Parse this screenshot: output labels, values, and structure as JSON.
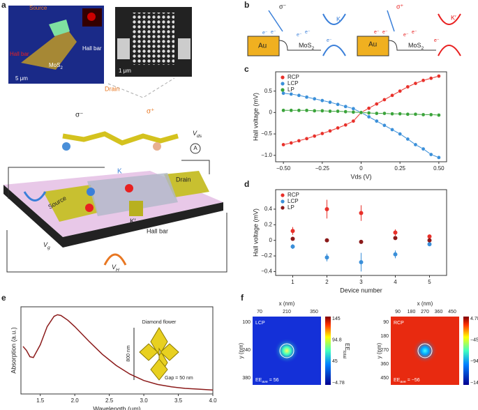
{
  "panel_labels": [
    "a",
    "b",
    "c",
    "d",
    "e",
    "f"
  ],
  "panel_a": {
    "source": "Source",
    "hall_bar_left": "Hall bar",
    "hall_bar_right": "Hall bar",
    "mos2": {
      "main": "MoS",
      "sub": "2"
    },
    "scale_a": "5 μm",
    "scale_b": "1 μm",
    "drain": "Drain",
    "sigma_minus": "σ⁻",
    "sigma_plus": "σ⁺",
    "vds": {
      "main": "V",
      "sub": "ds"
    },
    "ammeter": "A",
    "k": "K",
    "k_prime": "K′",
    "drain_pad": "Drain",
    "source_pad": "Source",
    "hall_bar_pad": "Hall bar",
    "vg": {
      "main": "V",
      "sub": "g"
    },
    "vh": {
      "main": "V",
      "sub": "H"
    }
  },
  "panel_b": {
    "sigma_left": "σ⁻",
    "k": "K",
    "au_left": "Au",
    "mos2_left": {
      "main": "MoS",
      "sub": "2"
    },
    "electrons_left": [
      "e⁻",
      "e⁻",
      "e⁻",
      "e⁻",
      "e⁻"
    ],
    "sigma_right": "σ⁺",
    "k_prime": "K′",
    "au_right": "Au",
    "mos2_right": {
      "main": "MoS",
      "sub": "2"
    },
    "electrons_right": [
      "e⁻",
      "e⁻",
      "e⁻",
      "e⁻",
      "e⁻"
    ]
  },
  "panel_e_inset": {
    "title": "Diamond flower",
    "size": "800 nm",
    "gap": "Gap = 50 nm"
  },
  "panel_f": {
    "left": {
      "x_title": "x (nm)",
      "y_title": "y (nm)",
      "xticks": [
        "70",
        "210",
        "350"
      ],
      "yticks": [
        "100",
        "240",
        "380"
      ],
      "mode": "LCP",
      "ee_ave": {
        "main": "EE",
        "sub": "ave",
        "rest": " = 56"
      },
      "colorbar_ticks": [
        "145",
        "94.8",
        "45",
        "−4.78"
      ],
      "colorbar_label": {
        "main": "EE",
        "sub": "total"
      }
    },
    "right": {
      "x_title": "x (nm)",
      "y_title": "y (nm)",
      "xticks": [
        "90",
        "180",
        "270",
        "360",
        "450"
      ],
      "yticks": [
        "90",
        "180",
        "270",
        "360",
        "450"
      ],
      "mode": "RCP",
      "ee_ave": {
        "main": "EE",
        "sub": "ave",
        "rest": " = −56"
      },
      "colorbar_ticks": [
        "4.78",
        "−45",
        "−94.8",
        "−145"
      ],
      "colorbar_label": {
        "main": "EE",
        "sub": "total"
      }
    }
  },
  "chart_data": [
    {
      "type": "line",
      "marker": true,
      "xlabel": "Vds (V)",
      "ylabel": "Hall voltage (mV)",
      "legend": "upper left",
      "x": [
        -0.5,
        -0.45,
        -0.4,
        -0.35,
        -0.3,
        -0.25,
        -0.2,
        -0.15,
        -0.1,
        -0.05,
        0,
        0.05,
        0.1,
        0.15,
        0.2,
        0.25,
        0.3,
        0.35,
        0.4,
        0.45,
        0.5
      ],
      "series": [
        {
          "name": "RCP",
          "color": "#e8302a",
          "values": [
            -0.75,
            -0.71,
            -0.66,
            -0.61,
            -0.55,
            -0.49,
            -0.43,
            -0.36,
            -0.29,
            -0.2,
            0,
            0.1,
            0.2,
            0.3,
            0.4,
            0.5,
            0.6,
            0.68,
            0.75,
            0.8,
            0.85
          ]
        },
        {
          "name": "LCP",
          "color": "#3a8fd9",
          "values": [
            0.45,
            0.43,
            0.4,
            0.36,
            0.32,
            0.28,
            0.24,
            0.19,
            0.14,
            0.09,
            0,
            -0.1,
            -0.2,
            -0.3,
            -0.4,
            -0.5,
            -0.62,
            -0.75,
            -0.85,
            -0.98,
            -1.05
          ]
        },
        {
          "name": "LP",
          "color": "#3aa33a",
          "values": [
            0.05,
            0.05,
            0.05,
            0.05,
            0.04,
            0.04,
            0.03,
            0.03,
            0.02,
            0.01,
            0,
            -0.01,
            -0.02,
            -0.02,
            -0.03,
            -0.03,
            -0.04,
            -0.04,
            -0.05,
            -0.05,
            -0.06
          ]
        }
      ],
      "xlim": [
        -0.55,
        0.55
      ],
      "ylim": [
        -1.15,
        0.95
      ],
      "xticks": [
        {
          "value": -0.5,
          "label": "−0.50"
        },
        {
          "value": -0.25,
          "label": "−0.25"
        },
        0,
        {
          "value": 0.25,
          "label": "0.25"
        },
        {
          "value": 0.5,
          "label": "0.50"
        }
      ],
      "yticks": [
        {
          "value": -1,
          "label": "−1.0"
        },
        {
          "value": -0.5,
          "label": "−0.5"
        },
        0,
        0.5
      ]
    },
    {
      "type": "scatter",
      "xlabel": "Device number",
      "ylabel": "Hall voltage (mV)",
      "legend": "upper left",
      "x": [
        1,
        2,
        3,
        4,
        5
      ],
      "series": [
        {
          "name": "RCP",
          "color": "#e8302a",
          "values": [
            0.12,
            0.4,
            0.35,
            0.1,
            0.05
          ],
          "errors": [
            0.05,
            0.12,
            0.1,
            0.04,
            0.02
          ]
        },
        {
          "name": "LCP",
          "color": "#3a8fd9",
          "values": [
            -0.08,
            -0.22,
            -0.28,
            -0.18,
            -0.05
          ],
          "errors": [
            0.03,
            0.05,
            0.12,
            0.05,
            0.01
          ]
        },
        {
          "name": "LP",
          "color": "#8b1a1a",
          "values": [
            0.02,
            0,
            -0.02,
            0.03,
            0
          ],
          "errors": [
            0.01,
            0.01,
            0.01,
            0.01,
            0.01
          ]
        }
      ],
      "xlim": [
        0.5,
        5.5
      ],
      "ylim": [
        -0.45,
        0.65
      ],
      "xticks": [
        1,
        2,
        3,
        4,
        5
      ],
      "yticks": [
        {
          "value": -0.4,
          "label": "−0.4"
        },
        {
          "value": -0.2,
          "label": "−0.2"
        },
        0,
        0.2,
        0.4
      ]
    },
    {
      "type": "line",
      "marker": false,
      "xlabel": "Wavelength (μm)",
      "ylabel": "Absorption (a.u.)",
      "x": [
        1.25,
        1.3,
        1.35,
        1.4,
        1.5,
        1.6,
        1.7,
        1.75,
        1.8,
        1.9,
        2.0,
        2.2,
        2.4,
        2.6,
        2.8,
        3.0,
        3.2,
        3.4,
        3.6,
        3.8,
        4.0
      ],
      "series": [
        {
          "color": "#8b1a1a",
          "values": [
            0.6,
            0.55,
            0.47,
            0.46,
            0.62,
            0.85,
            0.98,
            1.0,
            0.99,
            0.93,
            0.85,
            0.67,
            0.5,
            0.36,
            0.25,
            0.17,
            0.12,
            0.09,
            0.07,
            0.06,
            0.05
          ]
        }
      ],
      "xlim": [
        1.22,
        4.0
      ],
      "ylim": [
        0,
        1.1
      ],
      "xticks": [
        1.5,
        {
          "value": 2,
          "label": "2.0"
        },
        2.5,
        {
          "value": 3,
          "label": "3.0"
        },
        3.5,
        {
          "value": 4,
          "label": "4.0"
        }
      ]
    }
  ]
}
